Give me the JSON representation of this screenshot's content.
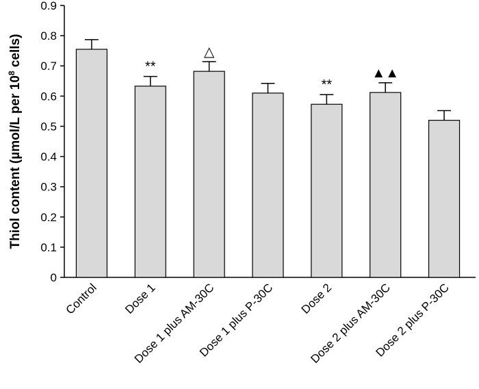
{
  "chart_data": {
    "type": "bar",
    "title": "",
    "xlabel": "",
    "ylabel": {
      "prefix": "Thiol content (µmol/L per 10",
      "superscript": "8",
      "suffix": " cells)"
    },
    "ylim": [
      0,
      0.9
    ],
    "yticks": [
      "0",
      "0.1",
      "0.2",
      "0.3",
      "0.4",
      "0.5",
      "0.6",
      "0.7",
      "0.8",
      "0.9"
    ],
    "categories": [
      "Control",
      "Dose 1",
      "Dose 1 plus AM-30C",
      "Dose 1 plus P-30C",
      "Dose 2",
      "Dose 2 plus AM-30C",
      "Dose 2 plus P-30C"
    ],
    "values": [
      0.755,
      0.633,
      0.682,
      0.61,
      0.573,
      0.612,
      0.52
    ],
    "errors": [
      0.032,
      0.032,
      0.032,
      0.032,
      0.032,
      0.032,
      0.032
    ],
    "annotations": [
      "",
      "**",
      "△",
      "",
      "**",
      "▲▲",
      ""
    ],
    "bar_color": "#d9d9d9",
    "grid": false,
    "legend": "none"
  }
}
